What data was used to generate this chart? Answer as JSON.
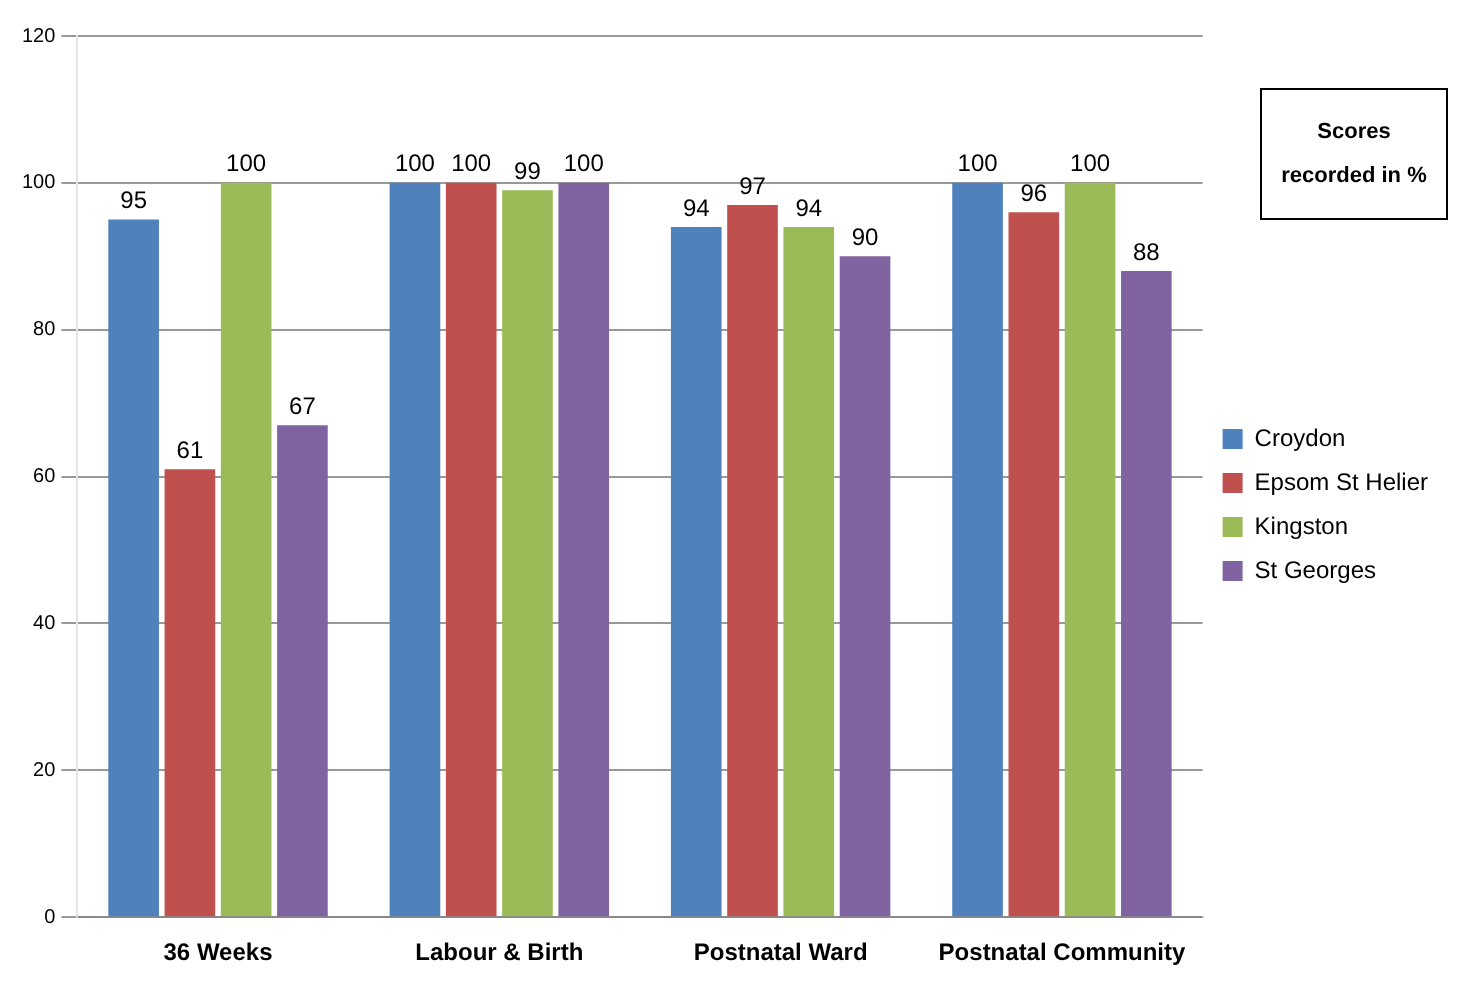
{
  "chart_data": {
    "type": "bar",
    "categories": [
      "36 Weeks",
      "Labour & Birth",
      "Postnatal Ward",
      "Postnatal Community"
    ],
    "series": [
      {
        "name": "Croydon",
        "color": "#4f81bd",
        "values": [
          95,
          100,
          94,
          100
        ]
      },
      {
        "name": "Epsom St Helier",
        "color": "#c0504d",
        "values": [
          61,
          100,
          97,
          96
        ]
      },
      {
        "name": "Kingston",
        "color": "#9bbb59",
        "values": [
          100,
          99,
          94,
          100
        ]
      },
      {
        "name": "St Georges",
        "color": "#8064a2",
        "values": [
          67,
          100,
          90,
          88
        ]
      }
    ],
    "ylim": [
      0,
      120
    ],
    "yticks": [
      0,
      20,
      40,
      60,
      80,
      100,
      120
    ],
    "grid": "y",
    "legend": "right",
    "data_labels": true,
    "annotations": [
      "Scores recorded in %"
    ]
  }
}
